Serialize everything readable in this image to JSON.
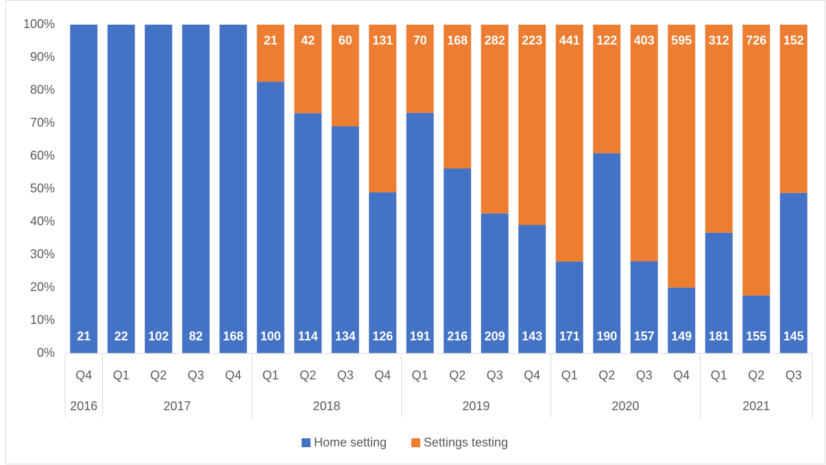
{
  "chart_data": {
    "type": "bar",
    "stacked": "percent",
    "categories": [
      "Q4",
      "Q1",
      "Q2",
      "Q3",
      "Q4",
      "Q1",
      "Q2",
      "Q3",
      "Q4",
      "Q1",
      "Q2",
      "Q3",
      "Q4",
      "Q1",
      "Q2",
      "Q3",
      "Q4",
      "Q1",
      "Q2",
      "Q3"
    ],
    "groups": [
      {
        "label": "2016",
        "size": 1
      },
      {
        "label": "2017",
        "size": 4
      },
      {
        "label": "2018",
        "size": 4
      },
      {
        "label": "2019",
        "size": 4
      },
      {
        "label": "2020",
        "size": 4
      },
      {
        "label": "2021",
        "size": 3
      }
    ],
    "series": [
      {
        "name": "Home setting",
        "color": "#4472c4",
        "values": [
          21,
          22,
          102,
          82,
          168,
          100,
          114,
          134,
          126,
          191,
          216,
          209,
          143,
          171,
          190,
          157,
          149,
          181,
          155,
          145
        ]
      },
      {
        "name": "Settings testing",
        "color": "#ed7d31",
        "values": [
          null,
          null,
          null,
          null,
          null,
          21,
          42,
          60,
          131,
          70,
          168,
          282,
          223,
          441,
          122,
          403,
          595,
          312,
          726,
          152
        ]
      }
    ],
    "ylim": [
      0,
      100
    ],
    "yticks": [
      {
        "value": 0,
        "label": "0%"
      },
      {
        "value": 10,
        "label": "10%"
      },
      {
        "value": 20,
        "label": "20%"
      },
      {
        "value": 30,
        "label": "30%"
      },
      {
        "value": 40,
        "label": "40%"
      },
      {
        "value": 50,
        "label": "50%"
      },
      {
        "value": 60,
        "label": "60%"
      },
      {
        "value": 70,
        "label": "70%"
      },
      {
        "value": 80,
        "label": "80%"
      },
      {
        "value": 90,
        "label": "90%"
      },
      {
        "value": 100,
        "label": "100%"
      }
    ],
    "legend": "bottom"
  }
}
